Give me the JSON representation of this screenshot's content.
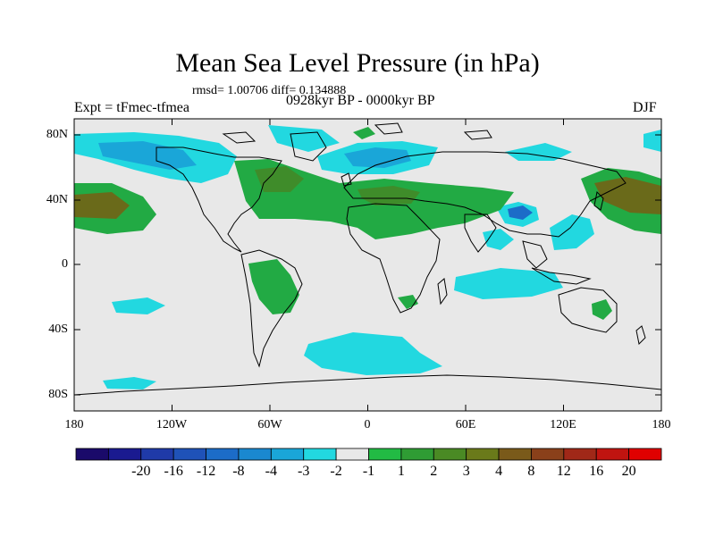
{
  "title": "Mean Sea Level Pressure (in hPa)",
  "stats": "rmsd= 1.00706 diff= 0.134888",
  "experiment": "Expt = tFmec-tfmea",
  "period": "0928kyr BP - 0000kyr BP",
  "season": "DJF",
  "axes": {
    "x_ticks": [
      "180",
      "120W",
      "60W",
      "0",
      "60E",
      "120E",
      "180"
    ],
    "y_ticks": [
      "80N",
      "40N",
      "0",
      "40S",
      "80S"
    ]
  },
  "colors": {
    "land_outline": "#000000",
    "background_field": "#e8e8e8",
    "neg_light": "#22d8e0",
    "neg_mid": "#1aa6d8",
    "neg_strong": "#1c6cc8",
    "pos_light": "#22aa44",
    "pos_mid": "#3f8c2a",
    "pos_strong": "#6a6a1a",
    "pos_stronger": "#7a4a1a"
  },
  "colorbar": {
    "colors": [
      "#1a0a6a",
      "#1a1a90",
      "#1f3aa8",
      "#1f52b8",
      "#1c6cc8",
      "#1a88d0",
      "#1aa6d8",
      "#22d8e0",
      "#e8e8e8",
      "#22bb44",
      "#2f9c34",
      "#4a8a24",
      "#6a7a1a",
      "#7a5a1a",
      "#8a401a",
      "#a02818",
      "#c01410",
      "#e00000"
    ],
    "labels": [
      "-20",
      "-16",
      "-12",
      "-8",
      "-4",
      "-3",
      "-2",
      "-1",
      "1",
      "2",
      "3",
      "4",
      "8",
      "12",
      "16",
      "20"
    ]
  }
}
